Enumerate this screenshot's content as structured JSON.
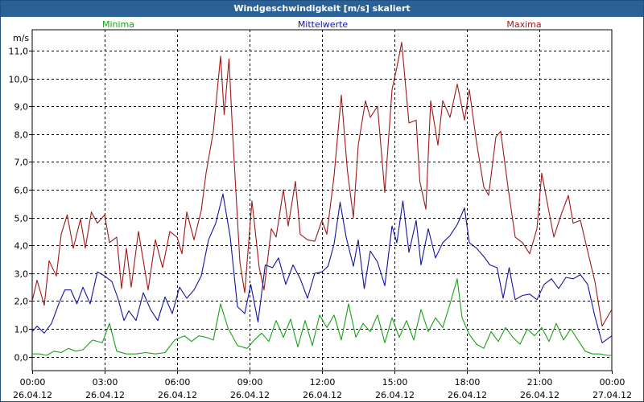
{
  "window": {
    "title": "Windgeschwindigkeit [m/s] skaliert"
  },
  "chart_data": {
    "type": "line",
    "ylabel": "m/s",
    "ylim": [
      -0.5,
      11.75
    ],
    "xlim_hours": [
      0,
      24
    ],
    "y_ticks": [
      {
        "value": 0,
        "label": "0,0"
      },
      {
        "value": 1,
        "label": "1,0"
      },
      {
        "value": 2,
        "label": "2,0"
      },
      {
        "value": 3,
        "label": "3,0"
      },
      {
        "value": 4,
        "label": "4,0"
      },
      {
        "value": 5,
        "label": "5,0"
      },
      {
        "value": 6,
        "label": "6,0"
      },
      {
        "value": 7,
        "label": "7,0"
      },
      {
        "value": 8,
        "label": "8,0"
      },
      {
        "value": 9,
        "label": "9,0"
      },
      {
        "value": 10,
        "label": "10,0"
      },
      {
        "value": 11,
        "label": "11,0"
      }
    ],
    "x_ticks": [
      {
        "hour": 0,
        "time": "00:00",
        "date": "26.04.12"
      },
      {
        "hour": 3,
        "time": "03:00",
        "date": "26.04.12"
      },
      {
        "hour": 6,
        "time": "06:00",
        "date": "26.04.12"
      },
      {
        "hour": 9,
        "time": "09:00",
        "date": "26.04.12"
      },
      {
        "hour": 12,
        "time": "12:00",
        "date": "26.04.12"
      },
      {
        "hour": 15,
        "time": "15:00",
        "date": "26.04.12"
      },
      {
        "hour": 18,
        "time": "18:00",
        "date": "26.04.12"
      },
      {
        "hour": 21,
        "time": "21:00",
        "date": "26.04.12"
      },
      {
        "hour": 24,
        "time": "00:00",
        "date": "27.04.12"
      }
    ],
    "grid": true,
    "series": [
      {
        "name": "Maxima",
        "color": "#a01818",
        "points": [
          [
            0,
            2
          ],
          [
            0.2,
            2.75
          ],
          [
            0.5,
            1.85
          ],
          [
            0.7,
            3.45
          ],
          [
            1,
            2.9
          ],
          [
            1.2,
            4.4
          ],
          [
            1.45,
            5.1
          ],
          [
            1.7,
            3.9
          ],
          [
            2,
            4.95
          ],
          [
            2.2,
            3.9
          ],
          [
            2.45,
            5.2
          ],
          [
            2.7,
            4.8
          ],
          [
            3,
            5.1
          ],
          [
            3.2,
            4.1
          ],
          [
            3.5,
            4.3
          ],
          [
            3.7,
            2.45
          ],
          [
            3.9,
            3.9
          ],
          [
            4.1,
            2.5
          ],
          [
            4.4,
            4.5
          ],
          [
            4.8,
            2.4
          ],
          [
            5.1,
            4.2
          ],
          [
            5.4,
            3.2
          ],
          [
            5.7,
            4.5
          ],
          [
            6,
            4.3
          ],
          [
            6.2,
            3.7
          ],
          [
            6.4,
            5.2
          ],
          [
            6.7,
            4.2
          ],
          [
            7,
            5.25
          ],
          [
            7.2,
            6.6
          ],
          [
            7.5,
            8.1
          ],
          [
            7.8,
            10.8
          ],
          [
            7.95,
            8.7
          ],
          [
            8.15,
            10.7
          ],
          [
            8.3,
            8
          ],
          [
            8.6,
            3.4
          ],
          [
            8.8,
            2.3
          ],
          [
            9.1,
            5.6
          ],
          [
            9.4,
            3.2
          ],
          [
            9.6,
            2.4
          ],
          [
            9.9,
            4.6
          ],
          [
            10.1,
            4.3
          ],
          [
            10.4,
            6
          ],
          [
            10.6,
            4.7
          ],
          [
            10.9,
            6.3
          ],
          [
            11.1,
            4.4
          ],
          [
            11.4,
            4.2
          ],
          [
            11.7,
            4.15
          ],
          [
            12,
            4.9
          ],
          [
            12.2,
            4.4
          ],
          [
            12.5,
            6.5
          ],
          [
            12.8,
            9.4
          ],
          [
            13.05,
            6.7
          ],
          [
            13.3,
            5
          ],
          [
            13.5,
            7.6
          ],
          [
            13.8,
            9.2
          ],
          [
            14,
            8.6
          ],
          [
            14.3,
            9
          ],
          [
            14.6,
            5.9
          ],
          [
            14.9,
            9.6
          ],
          [
            15.1,
            10.4
          ],
          [
            15.3,
            11.3
          ],
          [
            15.6,
            8.4
          ],
          [
            15.9,
            8.5
          ],
          [
            16.05,
            6.3
          ],
          [
            16.3,
            5.3
          ],
          [
            16.5,
            9.2
          ],
          [
            16.8,
            7.6
          ],
          [
            17,
            9.2
          ],
          [
            17.3,
            8.6
          ],
          [
            17.6,
            9.8
          ],
          [
            17.9,
            8.5
          ],
          [
            18.1,
            9.6
          ],
          [
            18.4,
            7.7
          ],
          [
            18.7,
            6.1
          ],
          [
            18.9,
            5.8
          ],
          [
            19.2,
            7.9
          ],
          [
            19.4,
            8.1
          ],
          [
            19.7,
            6.1
          ],
          [
            20,
            4.3
          ],
          [
            20.3,
            4.1
          ],
          [
            20.6,
            3.7
          ],
          [
            20.9,
            4.6
          ],
          [
            21.1,
            6.6
          ],
          [
            21.4,
            5.2
          ],
          [
            21.6,
            4.3
          ],
          [
            21.9,
            5.1
          ],
          [
            22.2,
            5.8
          ],
          [
            22.4,
            4.8
          ],
          [
            22.7,
            4.9
          ],
          [
            23,
            3.8
          ],
          [
            23.3,
            2.7
          ],
          [
            23.6,
            1.1
          ],
          [
            24,
            1.7
          ]
        ]
      },
      {
        "name": "Mittelwerte",
        "color": "#1414a0",
        "points": [
          [
            0,
            0.9
          ],
          [
            0.2,
            1.1
          ],
          [
            0.5,
            0.85
          ],
          [
            0.8,
            1.2
          ],
          [
            1.1,
            1.9
          ],
          [
            1.35,
            2.4
          ],
          [
            1.6,
            2.4
          ],
          [
            1.85,
            1.9
          ],
          [
            2.1,
            2.5
          ],
          [
            2.4,
            1.9
          ],
          [
            2.7,
            3.05
          ],
          [
            3,
            2.9
          ],
          [
            3.3,
            2.7
          ],
          [
            3.55,
            2.1
          ],
          [
            3.8,
            1.3
          ],
          [
            4,
            1.65
          ],
          [
            4.3,
            1.3
          ],
          [
            4.6,
            2.3
          ],
          [
            4.9,
            1.7
          ],
          [
            5.2,
            1.3
          ],
          [
            5.5,
            2.15
          ],
          [
            5.8,
            1.55
          ],
          [
            6.1,
            2.5
          ],
          [
            6.4,
            2.1
          ],
          [
            6.7,
            2.4
          ],
          [
            7,
            2.9
          ],
          [
            7.3,
            4.2
          ],
          [
            7.6,
            4.8
          ],
          [
            7.9,
            5.85
          ],
          [
            8.2,
            4.3
          ],
          [
            8.5,
            1.8
          ],
          [
            8.8,
            1.55
          ],
          [
            9.05,
            2.6
          ],
          [
            9.35,
            1.25
          ],
          [
            9.65,
            3.3
          ],
          [
            9.95,
            3.2
          ],
          [
            10.2,
            3.55
          ],
          [
            10.5,
            2.6
          ],
          [
            10.8,
            3.3
          ],
          [
            11.1,
            2.8
          ],
          [
            11.4,
            2.1
          ],
          [
            11.7,
            3
          ],
          [
            12,
            3.05
          ],
          [
            12.25,
            3.25
          ],
          [
            12.5,
            4.05
          ],
          [
            12.75,
            5.55
          ],
          [
            13,
            4.3
          ],
          [
            13.3,
            3.25
          ],
          [
            13.5,
            4.2
          ],
          [
            13.75,
            2.45
          ],
          [
            14,
            3.8
          ],
          [
            14.3,
            3.4
          ],
          [
            14.6,
            2.55
          ],
          [
            14.9,
            4.7
          ],
          [
            15.1,
            4.1
          ],
          [
            15.35,
            5.6
          ],
          [
            15.6,
            3.75
          ],
          [
            15.9,
            4.9
          ],
          [
            16.1,
            3.3
          ],
          [
            16.4,
            4.6
          ],
          [
            16.7,
            3.55
          ],
          [
            17,
            4.1
          ],
          [
            17.3,
            4.35
          ],
          [
            17.6,
            4.75
          ],
          [
            17.9,
            5.35
          ],
          [
            18.1,
            4.1
          ],
          [
            18.4,
            3.9
          ],
          [
            18.7,
            3.6
          ],
          [
            18.95,
            3.3
          ],
          [
            19.25,
            3.2
          ],
          [
            19.5,
            2.1
          ],
          [
            19.75,
            3.2
          ],
          [
            20,
            2.05
          ],
          [
            20.3,
            2.2
          ],
          [
            20.6,
            2.25
          ],
          [
            20.9,
            2.05
          ],
          [
            21.2,
            2.6
          ],
          [
            21.5,
            2.8
          ],
          [
            21.8,
            2.45
          ],
          [
            22.1,
            2.85
          ],
          [
            22.4,
            2.8
          ],
          [
            22.7,
            2.95
          ],
          [
            23,
            2.6
          ],
          [
            23.3,
            1.45
          ],
          [
            23.6,
            0.5
          ],
          [
            24,
            0.75
          ]
        ]
      },
      {
        "name": "Minima",
        "color": "#18a018",
        "points": [
          [
            0,
            0.1
          ],
          [
            0.3,
            0.1
          ],
          [
            0.6,
            0.05
          ],
          [
            0.9,
            0.2
          ],
          [
            1.2,
            0.15
          ],
          [
            1.5,
            0.3
          ],
          [
            1.8,
            0.2
          ],
          [
            2.1,
            0.25
          ],
          [
            2.5,
            0.6
          ],
          [
            2.9,
            0.5
          ],
          [
            3.2,
            1.2
          ],
          [
            3.5,
            0.2
          ],
          [
            3.9,
            0.1
          ],
          [
            4.3,
            0.1
          ],
          [
            4.7,
            0.15
          ],
          [
            5.1,
            0.1
          ],
          [
            5.5,
            0.15
          ],
          [
            5.9,
            0.6
          ],
          [
            6.3,
            0.75
          ],
          [
            6.6,
            0.55
          ],
          [
            6.9,
            0.75
          ],
          [
            7.2,
            0.7
          ],
          [
            7.5,
            0.6
          ],
          [
            7.8,
            1.9
          ],
          [
            8.1,
            1.05
          ],
          [
            8.5,
            0.4
          ],
          [
            8.9,
            0.3
          ],
          [
            9.2,
            0.6
          ],
          [
            9.5,
            0.85
          ],
          [
            9.8,
            0.55
          ],
          [
            10.1,
            1.3
          ],
          [
            10.4,
            0.7
          ],
          [
            10.7,
            1.35
          ],
          [
            11,
            0.35
          ],
          [
            11.3,
            1.3
          ],
          [
            11.6,
            0.4
          ],
          [
            11.9,
            1.5
          ],
          [
            12.2,
            1.05
          ],
          [
            12.5,
            1.5
          ],
          [
            12.8,
            0.6
          ],
          [
            13.1,
            1.9
          ],
          [
            13.4,
            0.7
          ],
          [
            13.7,
            1.2
          ],
          [
            14,
            0.9
          ],
          [
            14.3,
            1.5
          ],
          [
            14.6,
            0.5
          ],
          [
            14.9,
            1.4
          ],
          [
            15.2,
            0.7
          ],
          [
            15.5,
            1.3
          ],
          [
            15.8,
            0.6
          ],
          [
            16.1,
            1.7
          ],
          [
            16.4,
            0.9
          ],
          [
            16.7,
            1.4
          ],
          [
            17,
            1.05
          ],
          [
            17.3,
            1.9
          ],
          [
            17.6,
            2.8
          ],
          [
            17.8,
            1.4
          ],
          [
            18.1,
            0.8
          ],
          [
            18.4,
            0.45
          ],
          [
            18.7,
            0.3
          ],
          [
            19,
            0.9
          ],
          [
            19.3,
            0.55
          ],
          [
            19.6,
            1.05
          ],
          [
            19.9,
            0.7
          ],
          [
            20.2,
            0.45
          ],
          [
            20.5,
            1
          ],
          [
            20.8,
            0.75
          ],
          [
            21.1,
            1.05
          ],
          [
            21.4,
            0.55
          ],
          [
            21.7,
            1.2
          ],
          [
            22,
            0.6
          ],
          [
            22.3,
            1.0
          ],
          [
            22.6,
            0.6
          ],
          [
            22.9,
            0.2
          ],
          [
            23.2,
            0.1
          ],
          [
            23.5,
            0.1
          ],
          [
            23.8,
            0.05
          ],
          [
            24,
            0.05
          ]
        ]
      }
    ]
  }
}
